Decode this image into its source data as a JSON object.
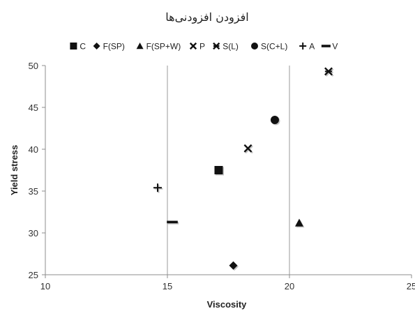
{
  "chart_data": {
    "type": "scatter",
    "title": "افزودن افزودنی‌ها",
    "xlabel": "Viscosity",
    "ylabel": "Yield stress",
    "xlim": [
      10,
      25
    ],
    "ylim": [
      25,
      50
    ],
    "x_ticks": [
      10,
      15,
      20,
      25
    ],
    "y_ticks": [
      25,
      30,
      35,
      40,
      45,
      50
    ],
    "grid": "vertical",
    "legend_position": "top",
    "series": [
      {
        "name": "C",
        "marker": "square",
        "points": [
          [
            17.1,
            37.5
          ]
        ]
      },
      {
        "name": "F(SP)",
        "marker": "diamond",
        "points": [
          [
            17.7,
            26.1
          ]
        ]
      },
      {
        "name": "F(SP+W)",
        "marker": "triangle",
        "points": [
          [
            20.4,
            31.2
          ]
        ]
      },
      {
        "name": "P",
        "marker": "x",
        "points": [
          [
            18.3,
            40.1
          ]
        ]
      },
      {
        "name": "S(L)",
        "marker": "star",
        "points": [
          [
            21.6,
            49.3
          ]
        ]
      },
      {
        "name": "S(C+L)",
        "marker": "circle",
        "points": [
          [
            19.4,
            43.5
          ]
        ]
      },
      {
        "name": "A",
        "marker": "plus",
        "points": [
          [
            14.6,
            35.4
          ]
        ]
      },
      {
        "name": "V",
        "marker": "dash",
        "points": [
          [
            15.2,
            31.3
          ]
        ]
      }
    ]
  }
}
